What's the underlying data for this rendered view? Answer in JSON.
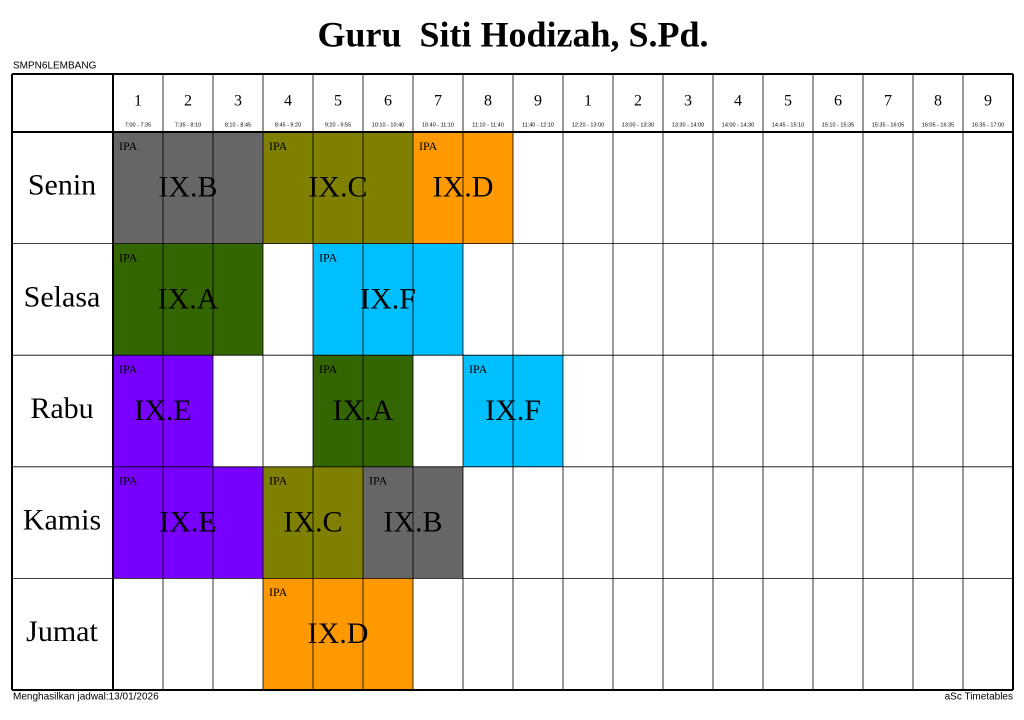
{
  "header": {
    "title": "Guru  Siti Hodizah, S.Pd.",
    "school": "SMPN6LEMBANG"
  },
  "periods": [
    {
      "number": 1,
      "time": "7:00 - 7:35"
    },
    {
      "number": 2,
      "time": "7:35 - 8:10"
    },
    {
      "number": 3,
      "time": "8:10 - 8:45"
    },
    {
      "number": 4,
      "time": "8:45 - 9:20"
    },
    {
      "number": 5,
      "time": "9:20 - 9:55"
    },
    {
      "number": 6,
      "time": "10:10 - 10:40"
    },
    {
      "number": 7,
      "time": "10:40 - 11:10"
    },
    {
      "number": 8,
      "time": "11:10 - 11:40"
    },
    {
      "number": 9,
      "time": "11:40 - 12:10"
    },
    {
      "number": 1,
      "time": "12:20 - 13:00"
    },
    {
      "number": 2,
      "time": "13:00 - 13:30"
    },
    {
      "number": 3,
      "time": "13:30 - 14:00"
    },
    {
      "number": 4,
      "time": "14:00 - 14:30"
    },
    {
      "number": 5,
      "time": "14:45 - 15:10"
    },
    {
      "number": 6,
      "time": "15:10 - 15:35"
    },
    {
      "number": 7,
      "time": "15:35 - 16:05"
    },
    {
      "number": 8,
      "time": "16:05 - 16:35"
    },
    {
      "number": 9,
      "time": "16:35 - 17:00"
    }
  ],
  "days": [
    {
      "name": "Senin",
      "lessons": [
        {
          "subject": "IPA",
          "class": "IX.B",
          "start": 0,
          "span": 3,
          "color": "#666666"
        },
        {
          "subject": "IPA",
          "class": "IX.C",
          "start": 3,
          "span": 3,
          "color": "#808000"
        },
        {
          "subject": "IPA",
          "class": "IX.D",
          "start": 6,
          "span": 2,
          "color": "#ff9900"
        }
      ]
    },
    {
      "name": "Selasa",
      "lessons": [
        {
          "subject": "IPA",
          "class": "IX.A",
          "start": 0,
          "span": 3,
          "color": "#336600"
        },
        {
          "subject": "IPA",
          "class": "IX.F",
          "start": 4,
          "span": 3,
          "color": "#00bfff"
        }
      ]
    },
    {
      "name": "Rabu",
      "lessons": [
        {
          "subject": "IPA",
          "class": "IX.E",
          "start": 0,
          "span": 2,
          "color": "#7700ff"
        },
        {
          "subject": "IPA",
          "class": "IX.A",
          "start": 4,
          "span": 2,
          "color": "#336600"
        },
        {
          "subject": "IPA",
          "class": "IX.F",
          "start": 7,
          "span": 2,
          "color": "#00bfff"
        }
      ]
    },
    {
      "name": "Kamis",
      "lessons": [
        {
          "subject": "IPA",
          "class": "IX.E",
          "start": 0,
          "span": 3,
          "color": "#7700ff"
        },
        {
          "subject": "IPA",
          "class": "IX.C",
          "start": 3,
          "span": 2,
          "color": "#808000"
        },
        {
          "subject": "IPA",
          "class": "IX.B",
          "start": 5,
          "span": 2,
          "color": "#666666"
        }
      ]
    },
    {
      "name": "Jumat",
      "lessons": [
        {
          "subject": "IPA",
          "class": "IX.D",
          "start": 3,
          "span": 3,
          "color": "#ff9900"
        }
      ]
    }
  ],
  "footer": {
    "generated": "Menghasilkan jadwal:13/01/2026",
    "software": "aSc Timetables"
  }
}
